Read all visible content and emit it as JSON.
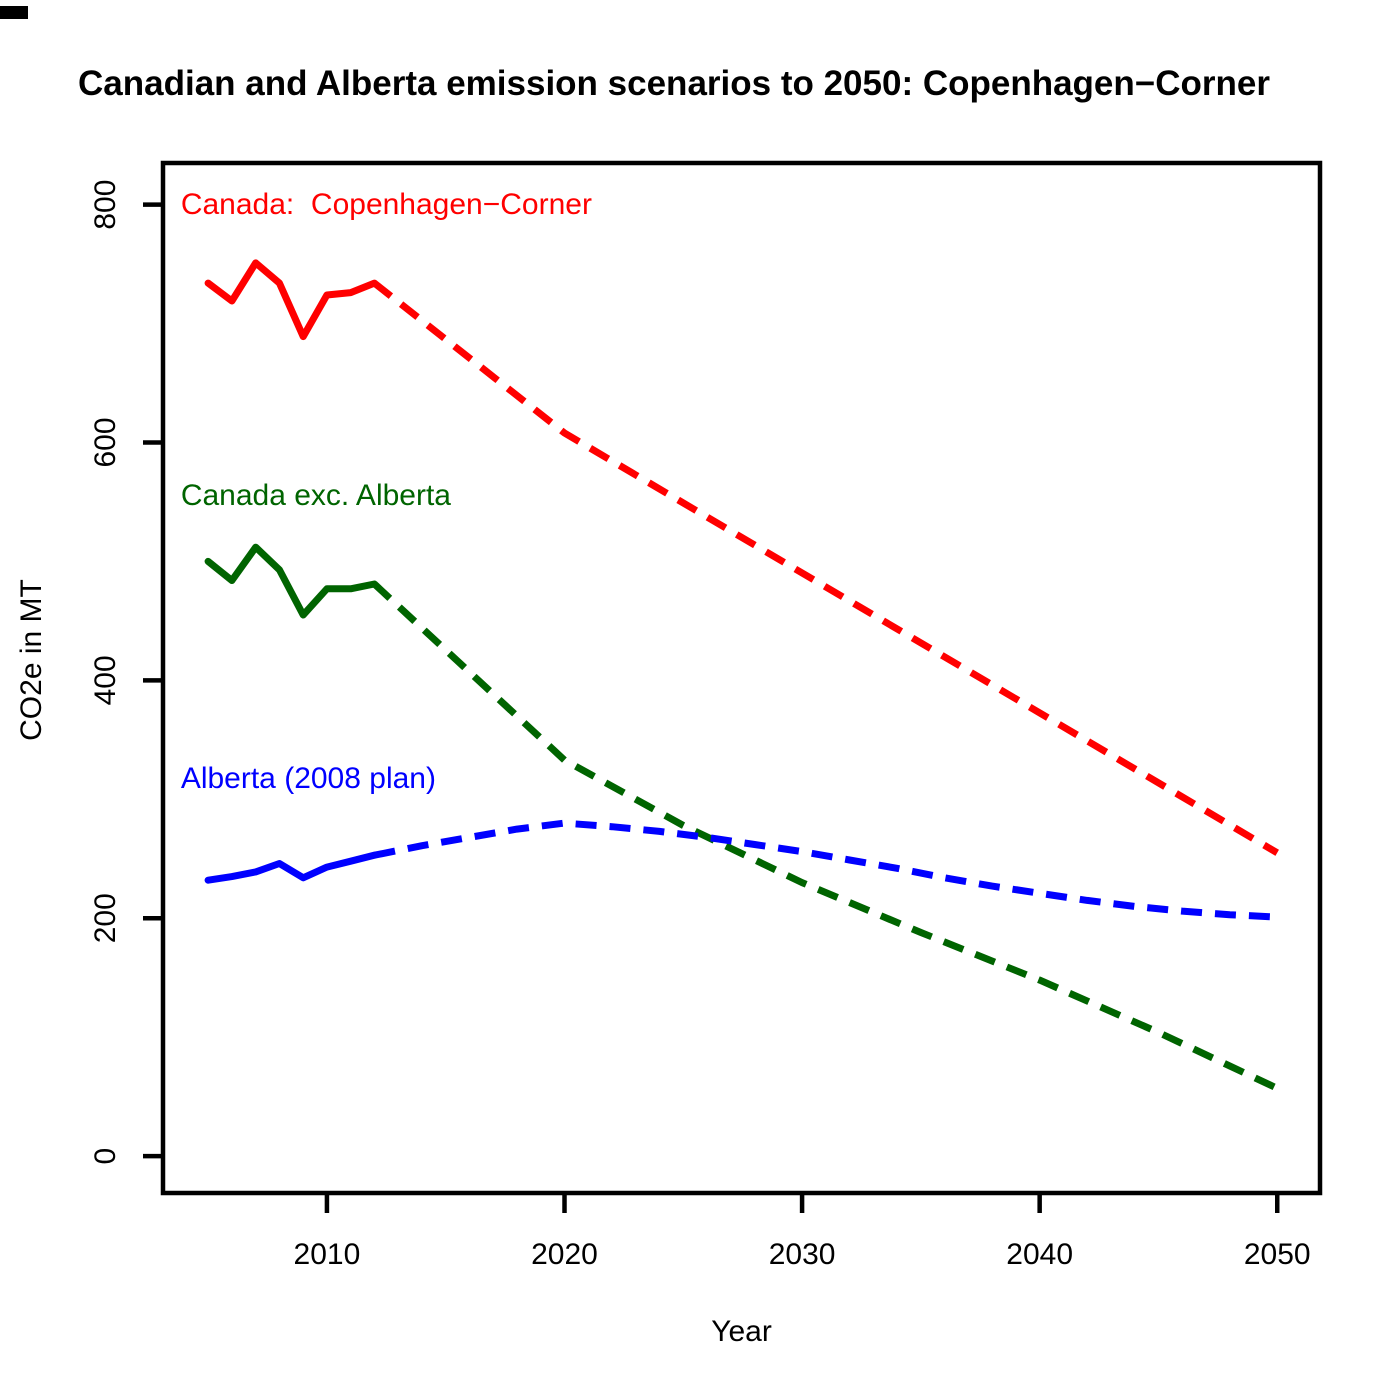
{
  "chart_data": {
    "type": "line",
    "title": "Canadian and Alberta emission scenarios to 2050: Copenhagen−Corner",
    "xlabel": "Year",
    "ylabel": "CO2e in MT",
    "xlim": [
      2003.1,
      2051.8
    ],
    "ylim": [
      -31,
      835
    ],
    "x_ticks": [
      "2010",
      "2020",
      "2030",
      "2040",
      "2050"
    ],
    "x_tick_values": [
      2010,
      2020,
      2030,
      2040,
      2050
    ],
    "y_ticks": [
      "0",
      "200",
      "400",
      "600",
      "800"
    ],
    "y_tick_values": [
      0,
      200,
      400,
      600,
      800
    ],
    "grid": false,
    "legend_position": "inline-annotations",
    "axis_color": "#000000",
    "line_width": 7,
    "dash_pattern": [
      21,
      13
    ],
    "series": [
      {
        "name": "canada-copenhagen-corner",
        "label": "Canada:  Copenhagen−Corner",
        "color": "#FF0000",
        "label_anchor": {
          "x": 2003.85,
          "y": 791
        },
        "segments": [
          {
            "style": "solid",
            "x": [
              2005,
              2006,
              2007,
              2008,
              2009,
              2010,
              2011,
              2012
            ],
            "y": [
              734,
              719,
              751,
              734,
              689,
              724,
              726,
              734
            ]
          },
          {
            "style": "dashed",
            "x": [
              2012,
              2020,
              2050
            ],
            "y": [
              734,
              608,
              255
            ]
          }
        ]
      },
      {
        "name": "canada-exc-alberta",
        "label": "Canada exc. Alberta",
        "color": "#006400",
        "label_anchor": {
          "x": 2003.85,
          "y": 547
        },
        "segments": [
          {
            "style": "solid",
            "x": [
              2005,
              2006,
              2007,
              2008,
              2009,
              2010,
              2011,
              2012
            ],
            "y": [
              500,
              484,
              512,
              493,
              455,
              477,
              477,
              481
            ]
          },
          {
            "style": "dashed",
            "x": [
              2012,
              2020,
              2025,
              2030,
              2035,
              2040,
              2045,
              2050
            ],
            "y": [
              481,
              333,
              278,
              230,
              188,
              148,
              104,
              57
            ]
          }
        ]
      },
      {
        "name": "alberta-2008-plan",
        "label": "Alberta (2008 plan)",
        "color": "#0000FF",
        "label_anchor": {
          "x": 2003.85,
          "y": 309
        },
        "segments": [
          {
            "style": "solid",
            "x": [
              2005,
              2006,
              2007,
              2008,
              2009,
              2010,
              2011,
              2012
            ],
            "y": [
              232,
              235,
              239,
              246,
              234,
              243,
              248,
              253
            ]
          },
          {
            "style": "dashed",
            "x": [
              2012,
              2014,
              2016,
              2018,
              2020,
              2022,
              2024,
              2026,
              2028,
              2030,
              2032,
              2034,
              2036,
              2038,
              2040,
              2042,
              2044,
              2046,
              2048,
              2050
            ],
            "y": [
              253,
              261,
              268,
              275,
              280,
              277,
              273,
              268,
              262,
              256,
              249,
              242,
              234,
              227,
              221,
              215,
              210,
              206,
              203,
              201
            ]
          }
        ]
      }
    ]
  }
}
